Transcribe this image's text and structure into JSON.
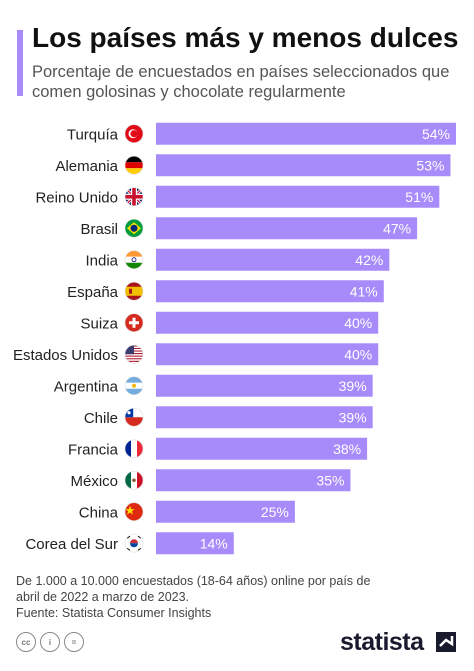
{
  "header": {
    "title": "Los países más y menos dulces",
    "subtitle": "Porcentaje de encuestados en países seleccionados que comen golosinas y chocolate regularmente"
  },
  "chart_data": {
    "type": "bar",
    "orientation": "horizontal",
    "categories": [
      "Turquía",
      "Alemania",
      "Reino Unido",
      "Brasil",
      "India",
      "España",
      "Suiza",
      "Estados Unidos",
      "Argentina",
      "Chile",
      "Francia",
      "México",
      "China",
      "Corea del Sur"
    ],
    "values": [
      54,
      53,
      51,
      47,
      42,
      41,
      40,
      40,
      39,
      39,
      38,
      35,
      25,
      14
    ],
    "labels": [
      "54%",
      "53%",
      "51%",
      "47%",
      "42%",
      "41%",
      "40%",
      "40%",
      "39%",
      "39%",
      "38%",
      "35%",
      "25%",
      "14%"
    ],
    "unit": "%",
    "xlim": [
      0,
      54
    ],
    "bar_color": "#a78bfa",
    "label_color": "#ffffff",
    "flags": [
      "tr",
      "de",
      "gb",
      "br",
      "in",
      "es",
      "ch",
      "us",
      "ar",
      "cl",
      "fr",
      "mx",
      "cn",
      "kr"
    ]
  },
  "footer": {
    "note": "De 1.000 a 10.000 encuestados (18-64 años) online por país de abril de 2022 a marzo de 2023.",
    "source": "Fuente: Statista Consumer Insights",
    "brand": "statista",
    "license_icons": [
      "cc-icon",
      "by-icon",
      "equals-icon"
    ]
  }
}
